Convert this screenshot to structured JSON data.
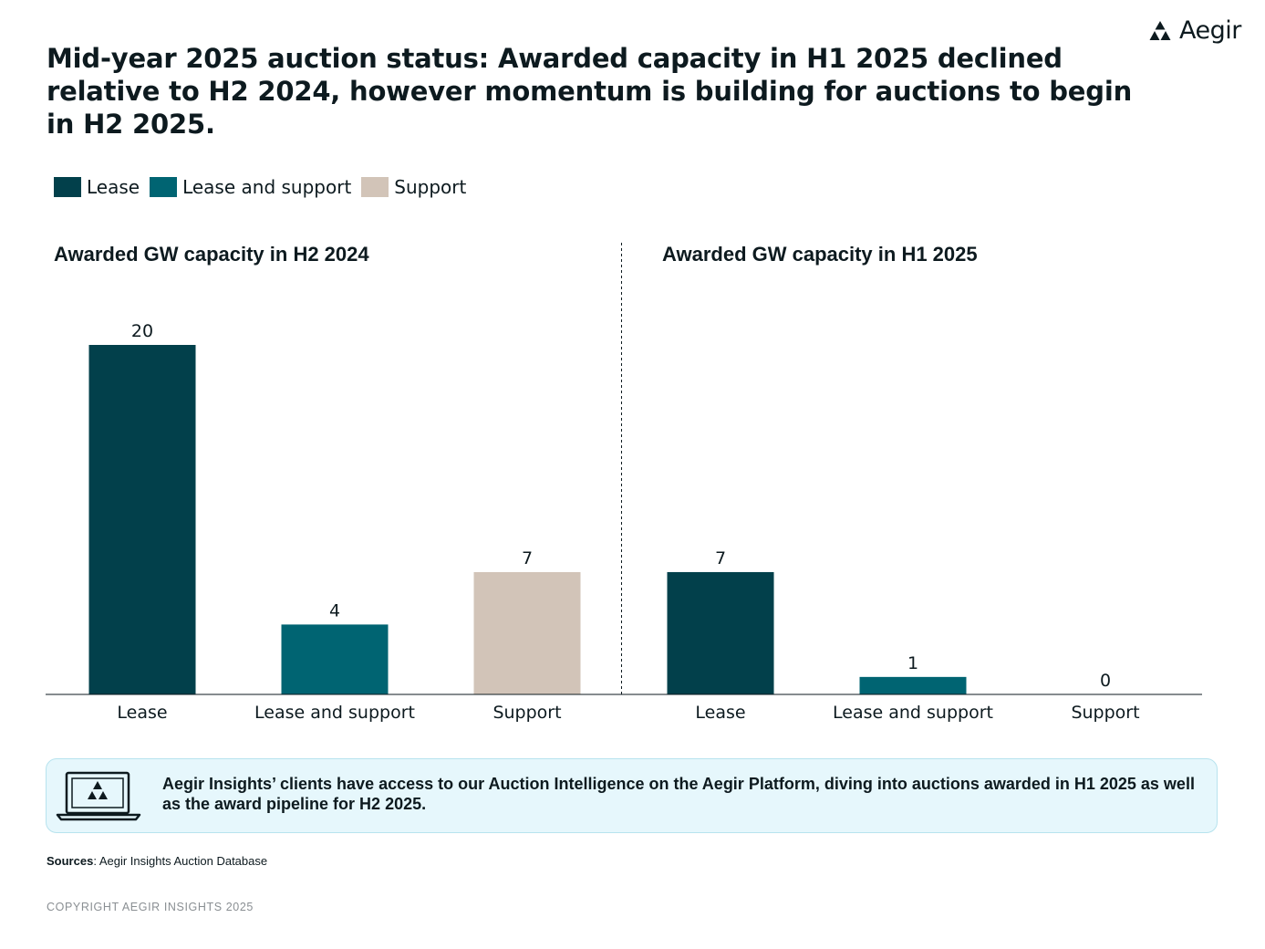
{
  "brand": {
    "name": "Aegir"
  },
  "title": "Mid-year 2025 auction status: Awarded capacity in H1 2025 declined relative to H2 2024, however momentum is building for auctions to begin in H2 2025.",
  "colors": {
    "lease": "#02404b",
    "lease_and_support": "#006472",
    "support": "#d2c4b8"
  },
  "chart_data": {
    "type": "bar",
    "legend": [
      "Lease",
      "Lease and support",
      "Support"
    ],
    "legend_position": "top-left",
    "ylim": [
      0,
      24
    ],
    "panels": [
      {
        "title": "Awarded GW capacity in H2 2024",
        "categories": [
          "Lease",
          "Lease and support",
          "Support"
        ],
        "values": [
          20,
          4,
          7
        ]
      },
      {
        "title": "Awarded GW capacity in H1 2025",
        "categories": [
          "Lease",
          "Lease and support",
          "Support"
        ],
        "values": [
          7,
          1,
          0
        ]
      }
    ]
  },
  "info_box": {
    "text": "Aegir Insights’ clients have access to our Auction Intelligence on the Aegir Platform, diving into auctions awarded in H1 2025 as well as the award pipeline for H2 2025."
  },
  "sources": {
    "label": "Sources",
    "text": ": Aegir Insights Auction Database"
  },
  "copyright": "COPYRIGHT AEGIR INSIGHTS 2025"
}
